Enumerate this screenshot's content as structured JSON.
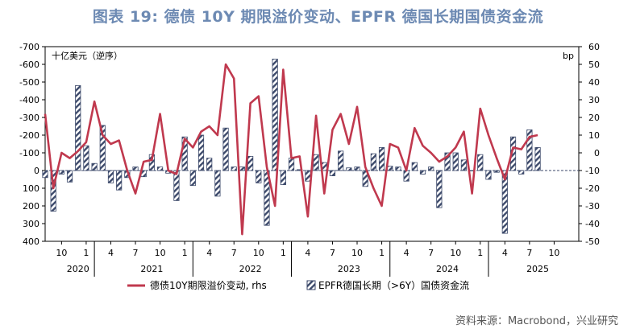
{
  "title": "图表 19: 德债 10Y 期限溢价变动、EPFR 德国长期国债资金流",
  "source": "资料来源：Macrobond，兴业研究",
  "colors": {
    "line": "#c0394e",
    "bar_stripe": "#3d4a6b",
    "title": "#6d8ab3",
    "axis": "#000000"
  },
  "chart_data": {
    "type": "bar+line",
    "left_axis_label": "十亿美元（逆序）",
    "right_axis_label": "bp",
    "left_axis": {
      "min": -700,
      "max": 400,
      "reversed": true,
      "ticks": [
        -700,
        -600,
        -500,
        -400,
        -300,
        -200,
        -100,
        0,
        100,
        200,
        300,
        400
      ],
      "tick_labels": [
        "-700",
        "-600",
        "-500",
        "-400",
        "-300",
        "-200",
        "-100",
        "0",
        "100",
        "200",
        "300",
        "400"
      ]
    },
    "right_axis": {
      "min": -50,
      "max": 60,
      "ticks": [
        60,
        50,
        40,
        30,
        20,
        10,
        0,
        -10,
        -20,
        -30,
        -40,
        -50
      ],
      "tick_labels": [
        "60",
        "50",
        "40",
        "30",
        "20",
        "10",
        "0",
        "-10",
        "-20",
        "-30",
        "-40",
        "-50"
      ]
    },
    "x_axis": {
      "tick_labels": [
        "10",
        "1",
        "4",
        "7",
        "10",
        "1",
        "4",
        "7",
        "10",
        "1",
        "4",
        "7",
        "10",
        "1",
        "4",
        "7",
        "10",
        "1",
        "4",
        "7",
        "10"
      ],
      "tick_months": [
        9,
        12,
        15,
        18,
        21,
        24,
        27,
        30,
        33,
        36,
        39,
        42,
        45,
        48,
        51,
        54,
        57,
        60,
        63,
        66,
        69
      ],
      "year_labels": [
        {
          "label": "2020",
          "month": 11
        },
        {
          "label": "2021",
          "month": 20
        },
        {
          "label": "2022",
          "month": 32
        },
        {
          "label": "2023",
          "month": 44
        },
        {
          "label": "2024",
          "month": 56
        },
        {
          "label": "2025",
          "month": 67
        }
      ],
      "year_separators": [
        13,
        25,
        37,
        49,
        61
      ]
    },
    "series": [
      {
        "name": "德债10Y期限溢价变动, rhs",
        "kind": "line",
        "axis": "right",
        "start_month": 7,
        "values": [
          22,
          -20,
          0,
          -3,
          1,
          6,
          29,
          10,
          5,
          7,
          -10,
          -23,
          -5,
          -4,
          22,
          -10,
          -12,
          8,
          3,
          12,
          15,
          10,
          50,
          42,
          -46,
          28,
          32,
          -8,
          -30,
          47,
          -3,
          -2,
          -36,
          21,
          -23,
          13,
          22,
          5,
          26,
          -8,
          -20,
          -30,
          5,
          3,
          -10,
          14,
          4,
          0,
          -5,
          -2,
          3,
          12,
          -23,
          25,
          10,
          -3,
          -15,
          3,
          2,
          9,
          10
        ]
      },
      {
        "name": "EPFR德国长期（>6Y）国债资金流",
        "kind": "bar",
        "axis": "left",
        "start_month": 7,
        "values": [
          40,
          230,
          20,
          65,
          -480,
          -140,
          -40,
          -255,
          70,
          110,
          40,
          -20,
          35,
          -90,
          -20,
          15,
          170,
          -190,
          85,
          -200,
          -70,
          145,
          -240,
          -20,
          -20,
          -80,
          70,
          310,
          -630,
          80,
          -70,
          -5,
          60,
          -90,
          -45,
          30,
          -110,
          -15,
          -20,
          90,
          -95,
          -130,
          -25,
          -20,
          60,
          -45,
          20,
          -20,
          210,
          -100,
          -100,
          -60,
          0,
          -90,
          50,
          10,
          355,
          -190,
          20,
          -230,
          -130
        ]
      }
    ]
  }
}
